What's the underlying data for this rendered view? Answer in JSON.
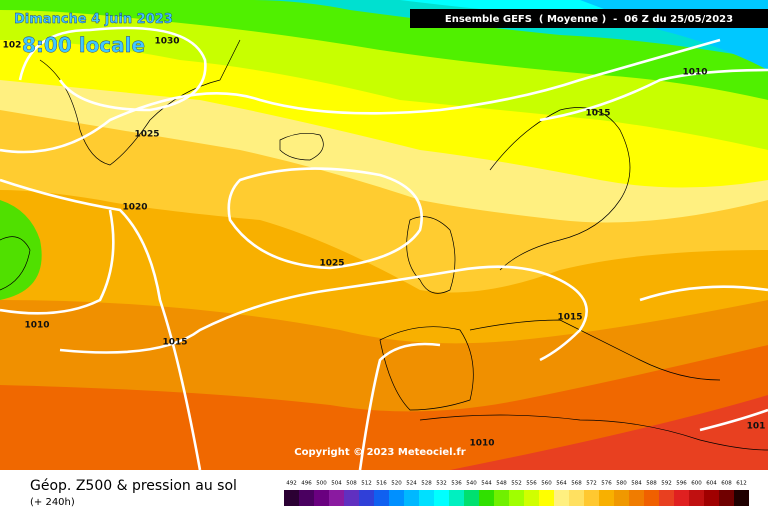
{
  "header": {
    "date": "Dimanche 4 juin 2023",
    "time": "8:00 locale",
    "model": "Ensemble GEFS  ( Moyenne )  -  06 Z du 25/05/2023"
  },
  "isobar_labels": [
    "102",
    "1030",
    "1025",
    "1020",
    "1025",
    "1010",
    "1015",
    "1010",
    "1015",
    "1015",
    "1010",
    "101"
  ],
  "copyright": "Copyright © 2023 Meteociel.fr",
  "footer": {
    "title": "Géop. Z500 & pression au sol",
    "lead": "(+ 240h)"
  },
  "scale": {
    "labels": [
      492,
      496,
      500,
      504,
      508,
      512,
      516,
      520,
      524,
      528,
      532,
      536,
      540,
      544,
      548,
      552,
      556,
      560,
      564,
      568,
      572,
      576,
      580,
      584,
      588,
      592,
      596,
      600,
      604,
      608,
      612
    ],
    "colors": [
      "#2b0033",
      "#4a0060",
      "#6a0080",
      "#8a1aa0",
      "#6030c0",
      "#3040d8",
      "#1060f0",
      "#0090ff",
      "#00b8ff",
      "#00e0ff",
      "#00ffff",
      "#00f0c0",
      "#00e070",
      "#30e000",
      "#70f000",
      "#a0ff00",
      "#d0ff00",
      "#ffff00",
      "#fff080",
      "#ffe060",
      "#ffc830",
      "#f8b000",
      "#f09800",
      "#f07c00",
      "#f06000",
      "#e84020",
      "#e02020",
      "#c01010",
      "#a00000",
      "#700000",
      "#200000"
    ]
  }
}
